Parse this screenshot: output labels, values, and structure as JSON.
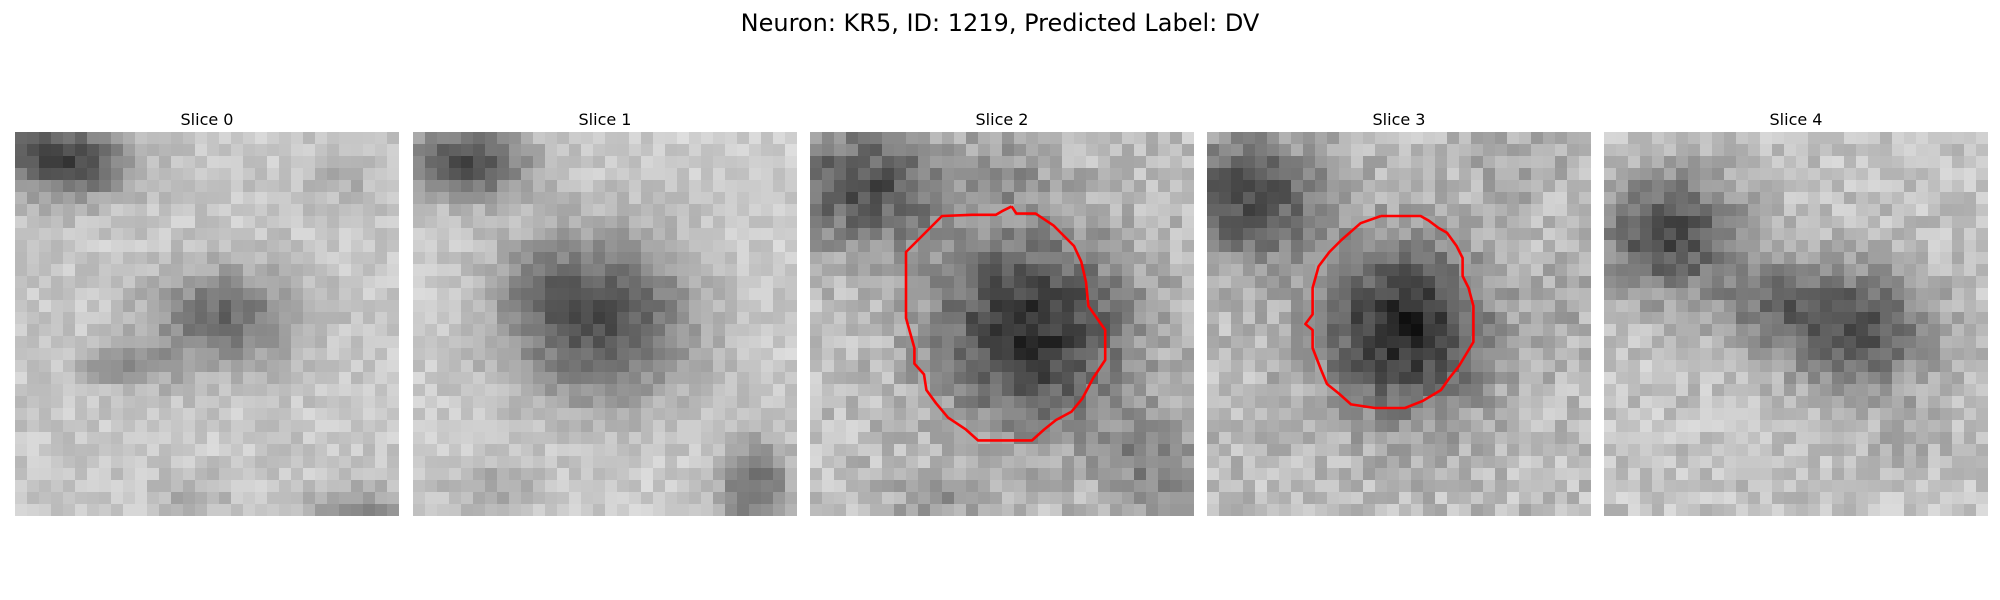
{
  "figure": {
    "title": "Neuron: KR5, ID: 1219, Predicted Label: DV"
  },
  "panels": [
    {
      "title": "Slice 0",
      "has_contour": false
    },
    {
      "title": "Slice 1",
      "has_contour": false
    },
    {
      "title": "Slice 2",
      "has_contour": true
    },
    {
      "title": "Slice 3",
      "has_contour": true
    },
    {
      "title": "Slice 4",
      "has_contour": false
    }
  ],
  "style": {
    "contour_color": "#ff0000",
    "colormap": "grayscale"
  }
}
